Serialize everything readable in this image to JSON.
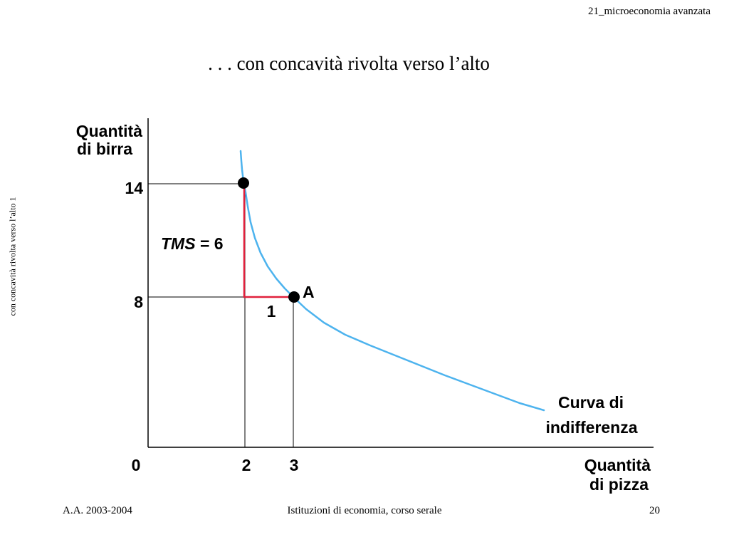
{
  "header": {
    "course_code": "21_microeconomia avanzata"
  },
  "slide": {
    "title": ". . . con concavità rivolta verso l’alto",
    "side_label": "con concavità rivolta verso l’alto 1"
  },
  "diagram": {
    "y_axis_label_line1": "Quantità",
    "y_axis_label_line2": "di birra",
    "x_axis_label_line1": "Quantità",
    "x_axis_label_line2": "di pizza",
    "origin_label": "0",
    "y_ticks": [
      "14",
      "8"
    ],
    "x_ticks": [
      "2",
      "3"
    ],
    "point_a_label": "A",
    "tms_label": "TMS",
    "tms_value": " = 6",
    "delta_x_label": "1",
    "curve_label_line1": "Curva di",
    "curve_label_line2": "indifferenza",
    "colors": {
      "curve": "#4db3ee",
      "triangle": "#e0203c",
      "axis": "#000000"
    }
  },
  "footer": {
    "academic_year": "A.A. 2003-2004",
    "course_name": "Istituzioni di economia, corso serale",
    "page_number": "20"
  }
}
